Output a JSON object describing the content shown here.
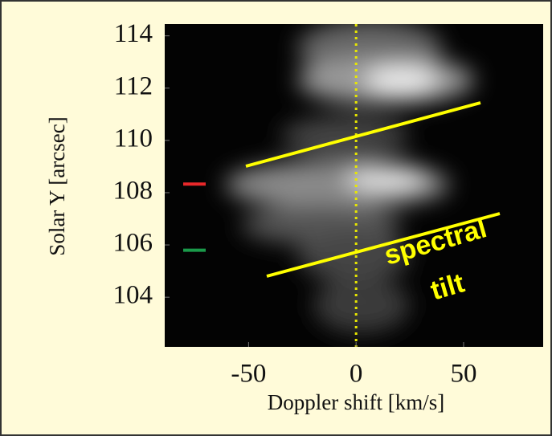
{
  "chart_data": {
    "type": "image",
    "xlabel": "Doppler shift [km/s]",
    "ylabel": "Solar Y [arcsec]",
    "xlim": [
      -89,
      87
    ],
    "ylim": [
      102.1,
      114.45
    ],
    "xticks": [
      -50,
      0,
      50
    ],
    "yticks": [
      104,
      106,
      108,
      110,
      112,
      114
    ],
    "zero_line": true,
    "markers": [
      {
        "color": "#e8282a",
        "value": 108.33
      },
      {
        "color": "#1a9a4a",
        "value": 105.8
      }
    ],
    "annotation": [
      "spectral",
      "tilt"
    ]
  }
}
